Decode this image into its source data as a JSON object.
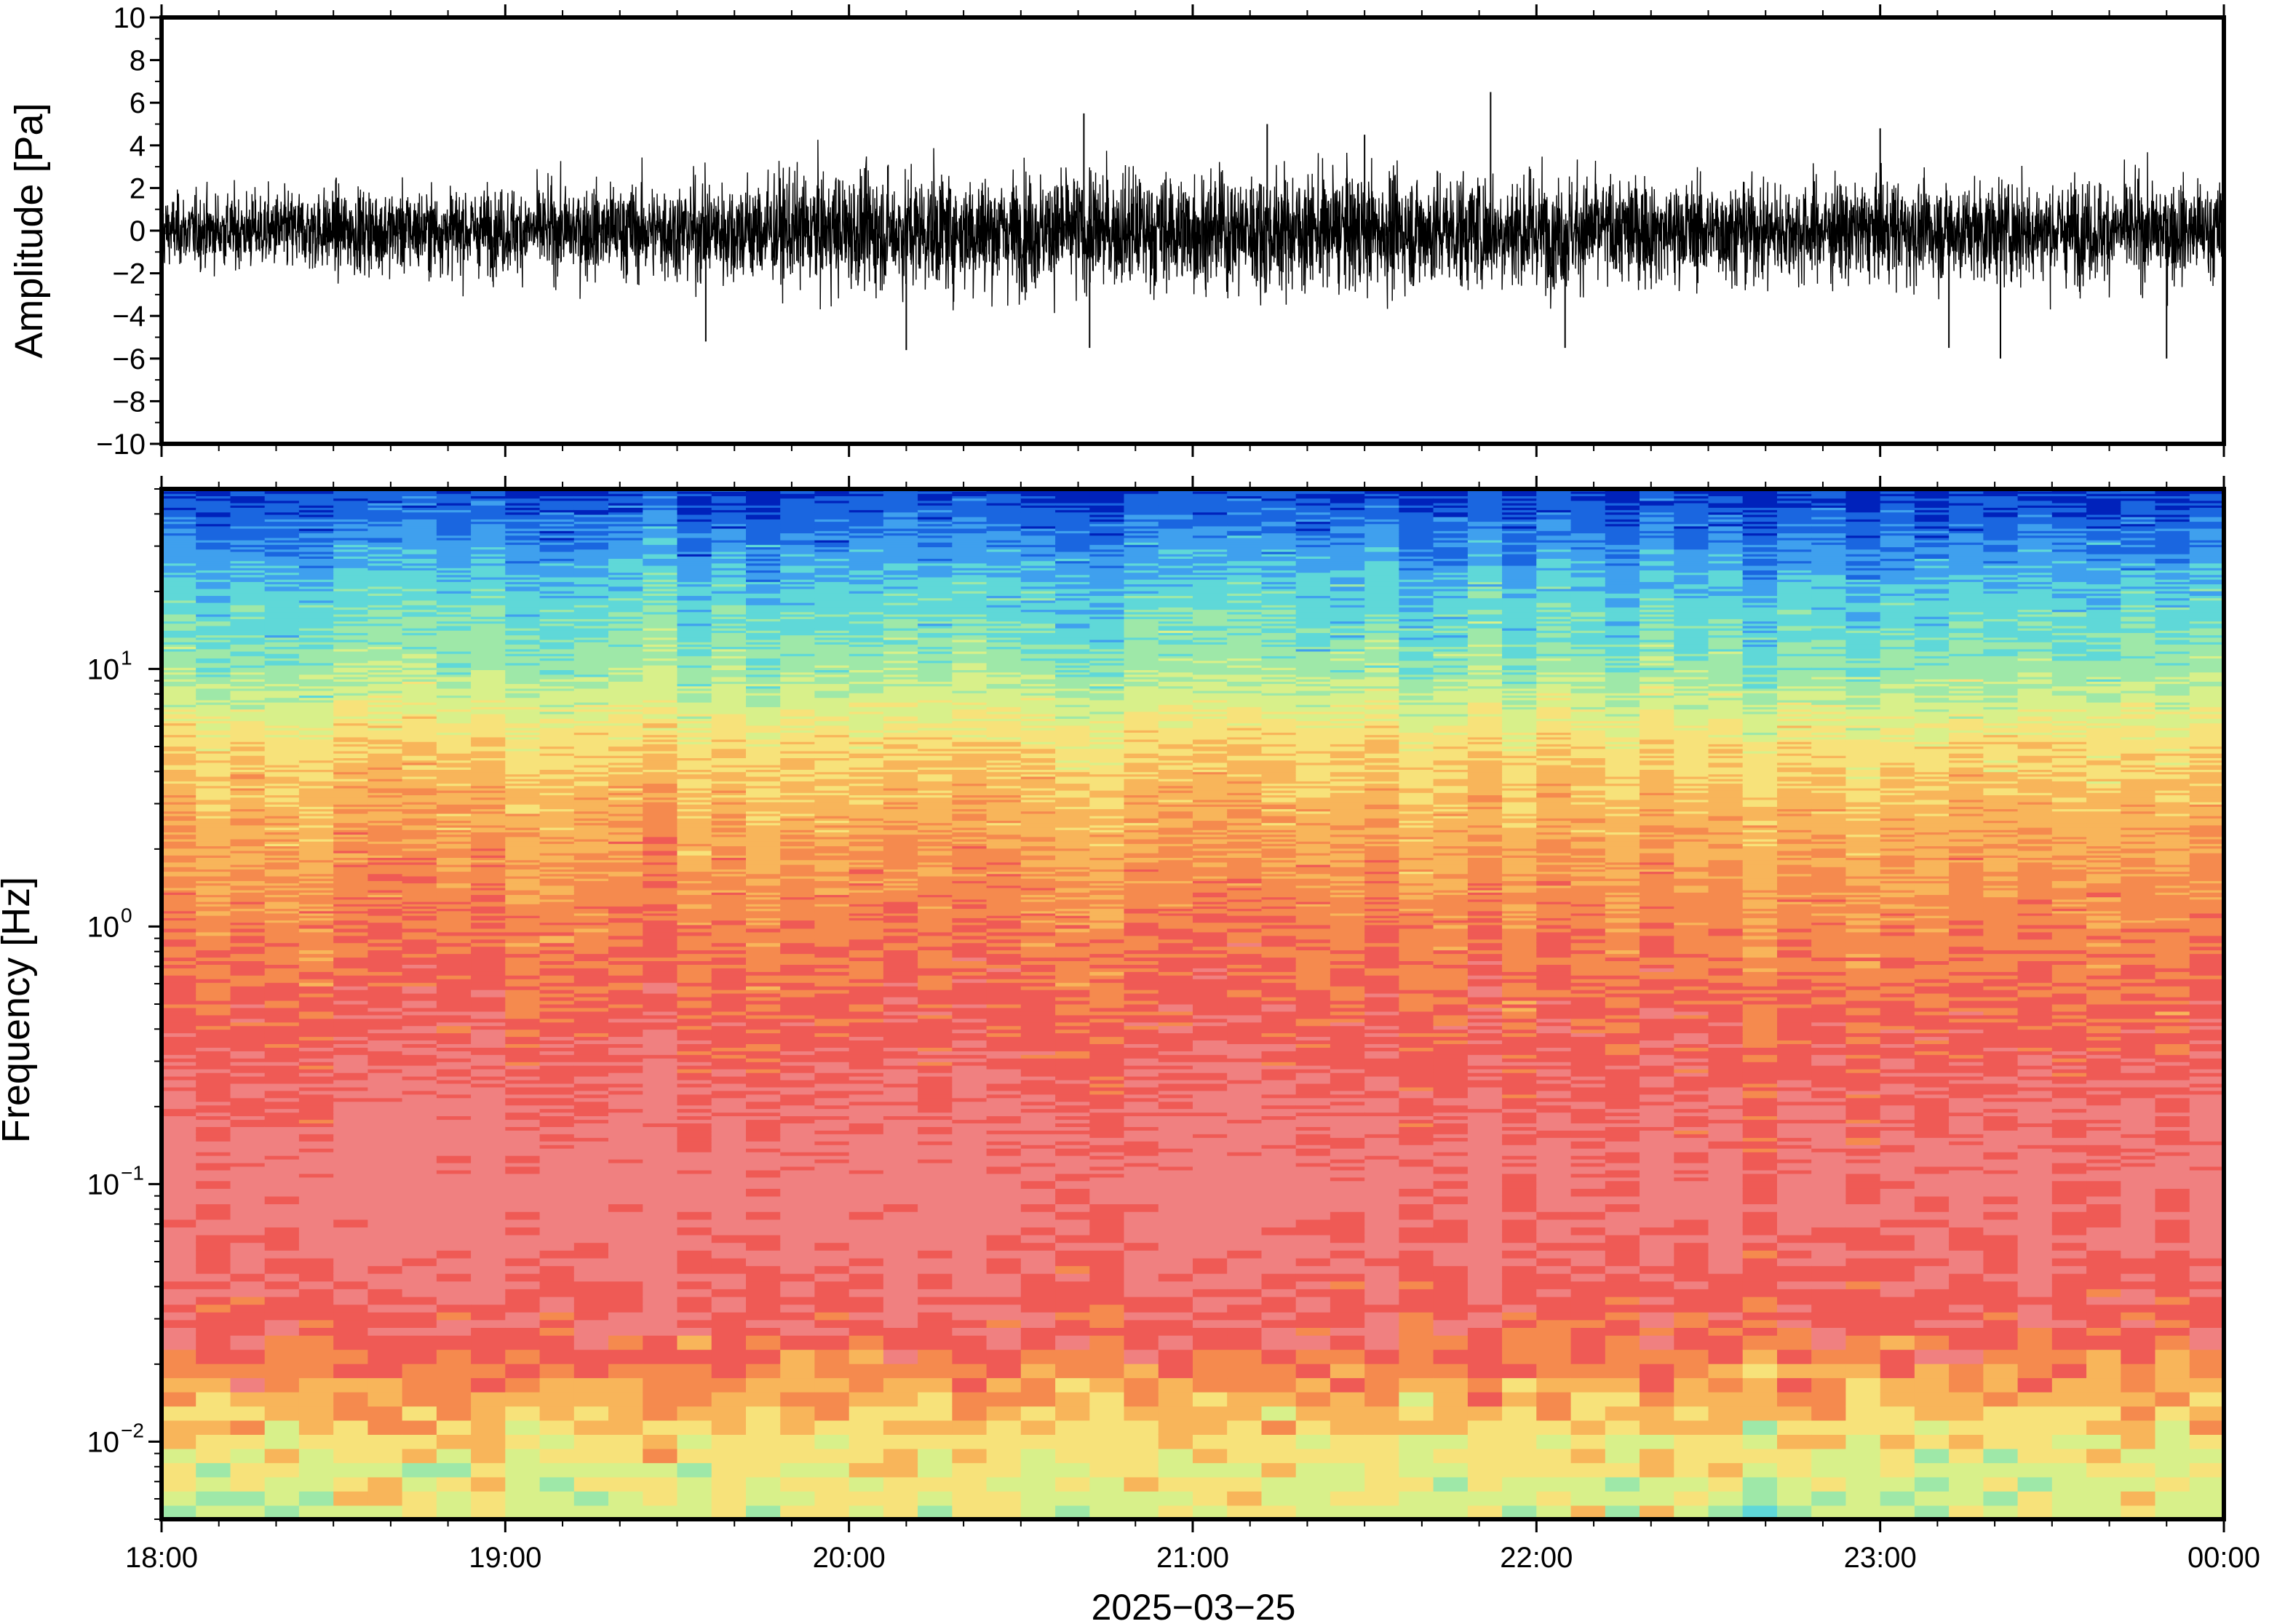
{
  "chart_data": [
    {
      "type": "line",
      "panel": "waveform",
      "ylabel": "Amplitude [Pa]",
      "xlabel": "",
      "ylim": [
        -10,
        10
      ],
      "yticks": [
        -10,
        -8,
        -6,
        -4,
        -2,
        0,
        2,
        4,
        6,
        8,
        10
      ],
      "ytick_labels": [
        "−10",
        "−8",
        "−6",
        "−4",
        "−2",
        "0",
        "2",
        "4",
        "6",
        "8",
        "10"
      ],
      "xlim": [
        "2025-03-25 18:00",
        "2025-03-26 00:00"
      ],
      "grid": false,
      "color": "#000000",
      "series": [
        {
          "x": [
            "18:00",
            "18:30",
            "19:00",
            "19:30",
            "20:00",
            "20:30",
            "21:00",
            "21:30",
            "22:00",
            "22:30",
            "23:00",
            "23:30",
            "00:00"
          ],
          "envelope_max": [
            2,
            2.5,
            2.5,
            3,
            3.5,
            3.5,
            3.5,
            3.5,
            3.5,
            3,
            3,
            3,
            3
          ],
          "envelope_min": [
            -2,
            -2.5,
            -2.5,
            -3,
            -3.5,
            -3.5,
            -3.5,
            -3.5,
            -3.5,
            -3,
            -3,
            -3,
            -3
          ]
        }
      ],
      "peaks": [
        {
          "x": "20:41",
          "y": 5.5
        },
        {
          "x": "20:42",
          "y": -5.5
        },
        {
          "x": "20:10",
          "y": -5.6
        },
        {
          "x": "19:35",
          "y": -5.2
        },
        {
          "x": "21:13",
          "y": 5.0
        },
        {
          "x": "21:52",
          "y": 6.5
        },
        {
          "x": "23:00",
          "y": 4.8
        },
        {
          "x": "23:12",
          "y": -5.5
        },
        {
          "x": "23:21",
          "y": -6.0
        },
        {
          "x": "23:50",
          "y": -6.0
        },
        {
          "x": "21:30",
          "y": 4.5
        },
        {
          "x": "22:05",
          "y": -5.5
        }
      ]
    },
    {
      "type": "heatmap",
      "panel": "spectrogram",
      "ylabel": "Frequency [Hz]",
      "xlabel": "2025−03−25",
      "yscale": "log",
      "ylim": [
        0.005,
        50
      ],
      "yticks": [
        0.01,
        0.1,
        1,
        10
      ],
      "ytick_labels": [
        {
          "base": "10",
          "exp": "−2"
        },
        {
          "base": "10",
          "exp": "−1"
        },
        {
          "base": "10",
          "exp": "0"
        },
        {
          "base": "10",
          "exp": "1"
        }
      ],
      "xticks": [
        "18:00",
        "19:00",
        "20:00",
        "21:00",
        "22:00",
        "23:00",
        "00:00"
      ],
      "colormap": [
        "#0022bb",
        "#1a66e0",
        "#3fa0ee",
        "#5fd8d8",
        "#9ee8a8",
        "#d8f08a",
        "#f7e27a",
        "#f8b55a",
        "#f58a4e",
        "#ef5a55",
        "#f08080"
      ],
      "time_bins": 60,
      "dominant_pattern": {
        "f_above_20Hz": "dark blue",
        "f_8_to_15Hz": "cyan",
        "f_2_to_5Hz": "yellow",
        "f_0.3_to_1Hz": "orange-red",
        "f_0.03_to_0.3Hz": "red / pink",
        "f_0.012_to_0.03Hz": "orange-yellow",
        "f_below_0.012Hz": "light green / cyan"
      }
    }
  ]
}
